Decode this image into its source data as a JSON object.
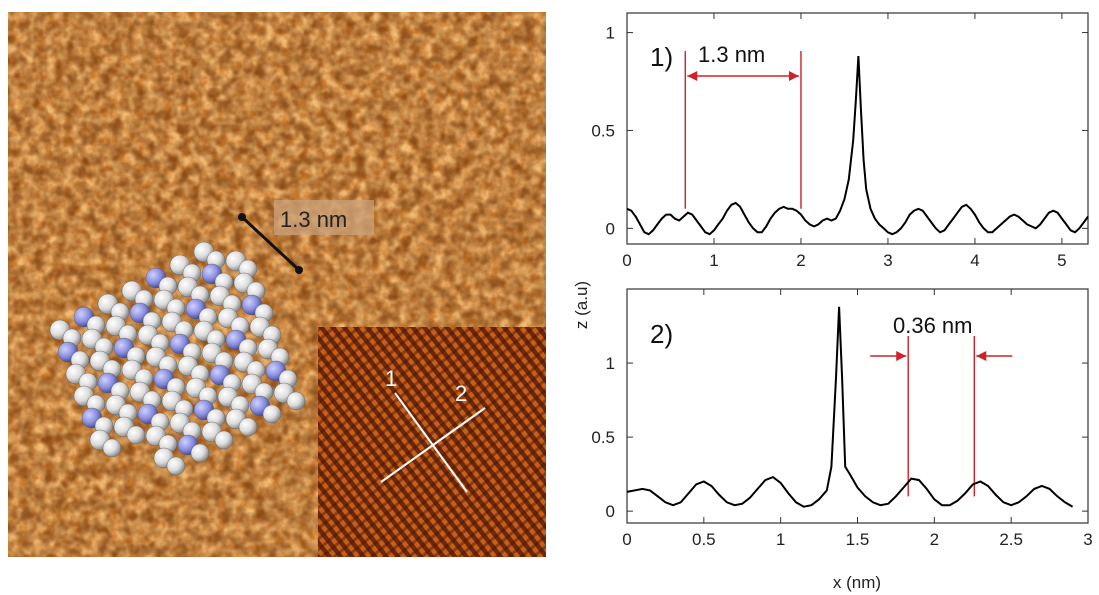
{
  "stm_image": {
    "scale_label": "1.3 nm",
    "inset_line_labels": [
      "1",
      "2"
    ]
  },
  "colors": {
    "stm_base": "#c8741c",
    "stm_dark": "#7a3a0c",
    "stm_light": "#f6c27a",
    "inset_dark": "#6e2808",
    "inset_light": "#c9661e",
    "trace": "#000000",
    "marker": "#d0202a",
    "molecule_white": "#e8e8e8",
    "molecule_blue": "#8a8fe0"
  },
  "chart_data": [
    {
      "type": "line",
      "panel_label": "1)",
      "annotation": "1.3 nm",
      "xlim": [
        0,
        5.3
      ],
      "ylim": [
        -0.08,
        1.1
      ],
      "xticks": [
        "0",
        "1",
        "2",
        "3",
        "4",
        "5"
      ],
      "yticks": [
        "0",
        "0.5",
        "1"
      ],
      "ylabel": "",
      "xlabel": "",
      "marker_lines_x": [
        0.67,
        2.0
      ],
      "series": [
        {
          "x": [
            0,
            0.05,
            0.1,
            0.15,
            0.2,
            0.25,
            0.3,
            0.35,
            0.4,
            0.45,
            0.5,
            0.55,
            0.6,
            0.65,
            0.7,
            0.75,
            0.8,
            0.85,
            0.9,
            0.95,
            1.0,
            1.05,
            1.1,
            1.15,
            1.2,
            1.25,
            1.3,
            1.35,
            1.4,
            1.45,
            1.5,
            1.55,
            1.6,
            1.65,
            1.7,
            1.75,
            1.8,
            1.85,
            1.9,
            1.95,
            2.0,
            2.05,
            2.1,
            2.15,
            2.2,
            2.25,
            2.3,
            2.35,
            2.4,
            2.45,
            2.5,
            2.55,
            2.6,
            2.63,
            2.66,
            2.69,
            2.72,
            2.75,
            2.8,
            2.85,
            2.9,
            2.95,
            3.0,
            3.05,
            3.1,
            3.15,
            3.2,
            3.25,
            3.3,
            3.35,
            3.4,
            3.45,
            3.5,
            3.55,
            3.6,
            3.65,
            3.7,
            3.75,
            3.8,
            3.85,
            3.9,
            3.95,
            4.0,
            4.05,
            4.1,
            4.15,
            4.2,
            4.25,
            4.3,
            4.35,
            4.4,
            4.45,
            4.5,
            4.55,
            4.6,
            4.65,
            4.7,
            4.75,
            4.8,
            4.85,
            4.9,
            4.95,
            5.0,
            5.05,
            5.1,
            5.15,
            5.2,
            5.25,
            5.3
          ],
          "y": [
            0.1,
            0.09,
            0.06,
            0.02,
            -0.02,
            -0.03,
            -0.01,
            0.02,
            0.05,
            0.07,
            0.07,
            0.05,
            0.04,
            0.06,
            0.08,
            0.07,
            0.04,
            0.01,
            -0.02,
            -0.03,
            -0.01,
            0.02,
            0.05,
            0.09,
            0.12,
            0.13,
            0.11,
            0.07,
            0.03,
            0.0,
            -0.02,
            -0.02,
            0.01,
            0.05,
            0.08,
            0.1,
            0.11,
            0.1,
            0.1,
            0.09,
            0.07,
            0.04,
            0.02,
            0.01,
            0.02,
            0.04,
            0.05,
            0.04,
            0.05,
            0.09,
            0.15,
            0.25,
            0.45,
            0.65,
            0.88,
            0.6,
            0.35,
            0.2,
            0.1,
            0.05,
            0.02,
            0.0,
            -0.02,
            -0.03,
            -0.02,
            0.0,
            0.03,
            0.07,
            0.09,
            0.1,
            0.09,
            0.06,
            0.03,
            0.0,
            -0.02,
            -0.01,
            0.02,
            0.05,
            0.08,
            0.11,
            0.12,
            0.1,
            0.07,
            0.03,
            0.0,
            -0.02,
            -0.02,
            0.0,
            0.02,
            0.04,
            0.06,
            0.07,
            0.06,
            0.04,
            0.02,
            0.01,
            0.0,
            0.02,
            0.05,
            0.08,
            0.09,
            0.08,
            0.05,
            0.02,
            -0.01,
            -0.02,
            0.0,
            0.03,
            0.06
          ]
        }
      ]
    },
    {
      "type": "line",
      "panel_label": "2)",
      "annotation": "0.36 nm",
      "xlim": [
        0,
        3.0
      ],
      "ylim": [
        -0.08,
        1.5
      ],
      "xticks": [
        "0",
        "0.5",
        "1",
        "1.5",
        "2",
        "2.5",
        "3"
      ],
      "yticks": [
        "0",
        "0.5",
        "1"
      ],
      "ylabel": "z (a.u)",
      "xlabel": "x (nm)",
      "marker_lines_x": [
        1.83,
        2.26
      ],
      "series": [
        {
          "x": [
            0,
            0.05,
            0.1,
            0.15,
            0.2,
            0.25,
            0.3,
            0.35,
            0.4,
            0.45,
            0.5,
            0.55,
            0.6,
            0.65,
            0.7,
            0.75,
            0.8,
            0.85,
            0.9,
            0.95,
            1.0,
            1.05,
            1.1,
            1.15,
            1.2,
            1.25,
            1.3,
            1.33,
            1.36,
            1.38,
            1.4,
            1.42,
            1.45,
            1.5,
            1.55,
            1.6,
            1.65,
            1.7,
            1.75,
            1.8,
            1.85,
            1.9,
            1.95,
            2.0,
            2.05,
            2.1,
            2.15,
            2.2,
            2.25,
            2.3,
            2.35,
            2.4,
            2.45,
            2.5,
            2.55,
            2.6,
            2.65,
            2.7,
            2.75,
            2.8,
            2.85,
            2.9
          ],
          "y": [
            0.13,
            0.14,
            0.15,
            0.14,
            0.1,
            0.06,
            0.04,
            0.06,
            0.12,
            0.18,
            0.2,
            0.17,
            0.11,
            0.06,
            0.04,
            0.05,
            0.09,
            0.15,
            0.21,
            0.23,
            0.19,
            0.12,
            0.06,
            0.03,
            0.04,
            0.08,
            0.14,
            0.3,
            0.9,
            1.38,
            0.9,
            0.3,
            0.25,
            0.16,
            0.1,
            0.06,
            0.04,
            0.05,
            0.1,
            0.16,
            0.22,
            0.21,
            0.15,
            0.08,
            0.04,
            0.04,
            0.07,
            0.12,
            0.18,
            0.2,
            0.17,
            0.11,
            0.06,
            0.04,
            0.06,
            0.1,
            0.15,
            0.17,
            0.15,
            0.1,
            0.06,
            0.03
          ]
        }
      ]
    }
  ]
}
